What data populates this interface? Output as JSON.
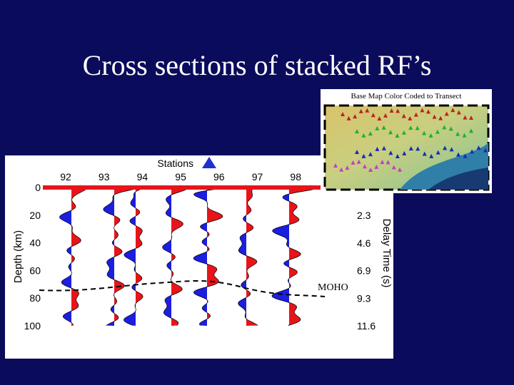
{
  "slide": {
    "title": "Cross sections of stacked RF’s"
  },
  "figure": {
    "stations_label": "Stations",
    "station_numbers": [
      "92",
      "93",
      "94",
      "95",
      "96",
      "97",
      "98"
    ],
    "depth_axis_label": "Depth (km)",
    "depth_ticks": [
      "0",
      "20",
      "40",
      "60",
      "80",
      "100"
    ],
    "delay_axis_label": "Delay Time (s)",
    "delay_ticks": [
      "2.3",
      "4.6",
      "6.9",
      "9.3",
      "11.6"
    ],
    "moho_label": "MOHO"
  },
  "map": {
    "title": "Base Map Color Coded to Transect"
  }
}
